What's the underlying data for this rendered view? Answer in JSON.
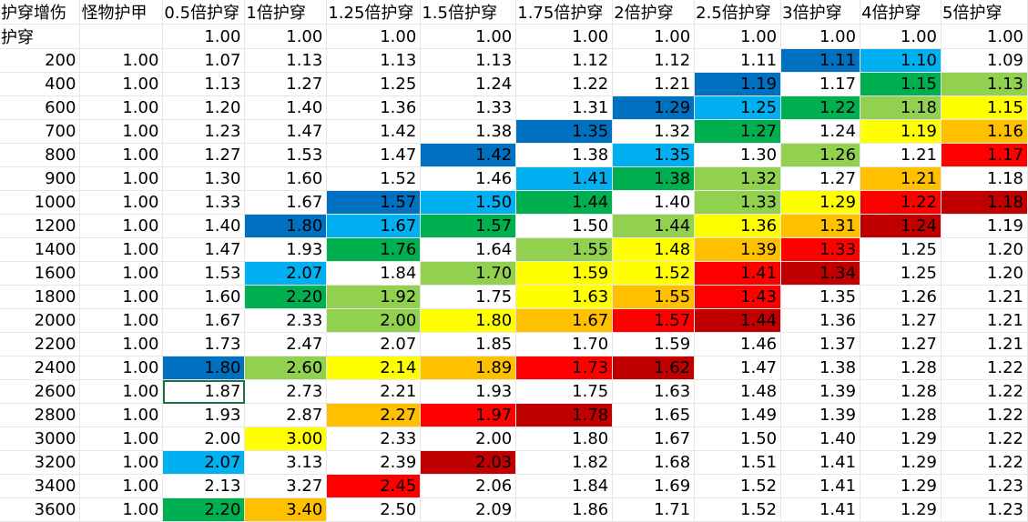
{
  "headers": [
    "护穿增伤",
    "怪物护甲",
    "0.5倍护穿",
    "1倍护穿",
    "1.25倍护穿",
    "1.5倍护穿",
    "1.75倍护穿",
    "2倍护穿",
    "2.5倍护穿",
    "3倍护穿",
    "4倍护穿",
    "5倍护穿"
  ],
  "colors": {
    "B": "#0070c0",
    "L": "#00b0f0",
    "G": "#00b050",
    "K": "#92d050",
    "Y": "#ffff00",
    "O": "#ffc000",
    "R": "#ff0000",
    "D": "#c00000"
  },
  "rows": [
    {
      "label": "护穿",
      "values": [
        "1.00",
        "1.00",
        "1.00",
        "1.00",
        "1.00",
        "1.00",
        "1.00",
        "1.00",
        "1.00",
        "1.00"
      ],
      "fills": [
        "",
        "",
        "",
        "",
        "",
        "",
        "",
        "",
        "",
        ""
      ]
    },
    {
      "label": "200",
      "values": [
        "1.00",
        "1.07",
        "1.13",
        "1.13",
        "1.13",
        "1.12",
        "1.12",
        "1.11",
        "1.11",
        "1.10",
        "1.09"
      ],
      "fills": [
        "",
        "",
        "",
        "",
        "",
        "",
        "",
        "",
        "B",
        "L",
        ""
      ]
    },
    {
      "label": "400",
      "values": [
        "1.00",
        "1.13",
        "1.27",
        "1.25",
        "1.24",
        "1.22",
        "1.21",
        "1.19",
        "1.17",
        "1.15",
        "1.13"
      ],
      "fills": [
        "",
        "",
        "",
        "",
        "",
        "",
        "",
        "B",
        "",
        "G",
        "K"
      ]
    },
    {
      "label": "600",
      "values": [
        "1.00",
        "1.20",
        "1.40",
        "1.36",
        "1.33",
        "1.31",
        "1.29",
        "1.25",
        "1.22",
        "1.18",
        "1.15"
      ],
      "fills": [
        "",
        "",
        "",
        "",
        "",
        "",
        "B",
        "L",
        "G",
        "K",
        "Y"
      ]
    },
    {
      "label": "700",
      "values": [
        "1.00",
        "1.23",
        "1.47",
        "1.42",
        "1.38",
        "1.35",
        "1.32",
        "1.27",
        "1.24",
        "1.19",
        "1.16"
      ],
      "fills": [
        "",
        "",
        "",
        "",
        "",
        "B",
        "",
        "G",
        "",
        "Y",
        "O"
      ]
    },
    {
      "label": "800",
      "values": [
        "1.00",
        "1.27",
        "1.53",
        "1.47",
        "1.42",
        "1.38",
        "1.35",
        "1.30",
        "1.26",
        "1.21",
        "1.17"
      ],
      "fills": [
        "",
        "",
        "",
        "",
        "B",
        "",
        "L",
        "",
        "K",
        "",
        "R"
      ]
    },
    {
      "label": "900",
      "values": [
        "1.00",
        "1.30",
        "1.60",
        "1.52",
        "1.46",
        "1.41",
        "1.38",
        "1.32",
        "1.27",
        "1.21",
        "1.18"
      ],
      "fills": [
        "",
        "",
        "",
        "",
        "",
        "L",
        "G",
        "K",
        "",
        "O",
        ""
      ]
    },
    {
      "label": "1000",
      "values": [
        "1.00",
        "1.33",
        "1.67",
        "1.57",
        "1.50",
        "1.44",
        "1.40",
        "1.33",
        "1.29",
        "1.22",
        "1.18"
      ],
      "fills": [
        "",
        "",
        "",
        "B",
        "L",
        "G",
        "",
        "K",
        "Y",
        "R",
        "D"
      ]
    },
    {
      "label": "1200",
      "values": [
        "1.00",
        "1.40",
        "1.80",
        "1.67",
        "1.57",
        "1.50",
        "1.44",
        "1.36",
        "1.31",
        "1.24",
        "1.19"
      ],
      "fills": [
        "",
        "",
        "B",
        "L",
        "G",
        "",
        "K",
        "Y",
        "O",
        "D",
        ""
      ]
    },
    {
      "label": "1400",
      "values": [
        "1.00",
        "1.47",
        "1.93",
        "1.76",
        "1.64",
        "1.55",
        "1.48",
        "1.39",
        "1.33",
        "1.25",
        "1.20"
      ],
      "fills": [
        "",
        "",
        "",
        "G",
        "",
        "K",
        "Y",
        "O",
        "R",
        "",
        ""
      ]
    },
    {
      "label": "1600",
      "values": [
        "1.00",
        "1.53",
        "2.07",
        "1.84",
        "1.70",
        "1.59",
        "1.52",
        "1.41",
        "1.34",
        "1.25",
        "1.20"
      ],
      "fills": [
        "",
        "",
        "L",
        "",
        "K",
        "Y",
        "Y",
        "R",
        "D",
        "",
        ""
      ]
    },
    {
      "label": "1800",
      "values": [
        "1.00",
        "1.60",
        "2.20",
        "1.92",
        "1.75",
        "1.63",
        "1.55",
        "1.43",
        "1.35",
        "1.26",
        "1.21"
      ],
      "fills": [
        "",
        "",
        "G",
        "K",
        "",
        "Y",
        "O",
        "R",
        "",
        "",
        ""
      ]
    },
    {
      "label": "2000",
      "values": [
        "1.00",
        "1.67",
        "2.33",
        "2.00",
        "1.80",
        "1.67",
        "1.57",
        "1.44",
        "1.36",
        "1.27",
        "1.21"
      ],
      "fills": [
        "",
        "",
        "",
        "K",
        "Y",
        "O",
        "R",
        "D",
        "",
        "",
        ""
      ]
    },
    {
      "label": "2200",
      "values": [
        "1.00",
        "1.73",
        "2.47",
        "2.07",
        "1.85",
        "1.70",
        "1.59",
        "1.46",
        "1.37",
        "1.27",
        "1.21"
      ],
      "fills": [
        "",
        "",
        "",
        "",
        "",
        "",
        "",
        "",
        "",
        "",
        ""
      ]
    },
    {
      "label": "2400",
      "values": [
        "1.00",
        "1.80",
        "2.60",
        "2.14",
        "1.89",
        "1.73",
        "1.62",
        "1.47",
        "1.38",
        "1.28",
        "1.22"
      ],
      "fills": [
        "",
        "B",
        "K",
        "Y",
        "O",
        "R",
        "D",
        "",
        "",
        "",
        ""
      ]
    },
    {
      "label": "2600",
      "values": [
        "1.00",
        "1.87",
        "2.73",
        "2.21",
        "1.93",
        "1.75",
        "1.63",
        "1.48",
        "1.39",
        "1.28",
        "1.22"
      ],
      "fills": [
        "",
        "",
        "",
        "",
        "",
        "",
        "",
        "",
        "",
        "",
        ""
      ]
    },
    {
      "label": "2800",
      "values": [
        "1.00",
        "1.93",
        "2.87",
        "2.27",
        "1.97",
        "1.78",
        "1.65",
        "1.49",
        "1.39",
        "1.28",
        "1.22"
      ],
      "fills": [
        "",
        "",
        "",
        "O",
        "R",
        "D",
        "",
        "",
        "",
        "",
        ""
      ]
    },
    {
      "label": "3000",
      "values": [
        "1.00",
        "2.00",
        "3.00",
        "2.33",
        "2.00",
        "1.80",
        "1.67",
        "1.50",
        "1.40",
        "1.29",
        "1.22"
      ],
      "fills": [
        "",
        "",
        "Y",
        "",
        "",
        "",
        "",
        "",
        "",
        "",
        ""
      ]
    },
    {
      "label": "3200",
      "values": [
        "1.00",
        "2.07",
        "3.13",
        "2.39",
        "2.03",
        "1.82",
        "1.68",
        "1.51",
        "1.41",
        "1.29",
        "1.22"
      ],
      "fills": [
        "",
        "L",
        "",
        "",
        "D",
        "",
        "",
        "",
        "",
        "",
        ""
      ]
    },
    {
      "label": "3400",
      "values": [
        "1.00",
        "2.13",
        "3.27",
        "2.45",
        "2.06",
        "1.84",
        "1.69",
        "1.52",
        "1.41",
        "1.29",
        "1.23"
      ],
      "fills": [
        "",
        "",
        "",
        "R",
        "",
        "",
        "",
        "",
        "",
        "",
        ""
      ]
    },
    {
      "label": "3600",
      "values": [
        "1.00",
        "2.20",
        "3.40",
        "2.50",
        "2.09",
        "1.86",
        "1.71",
        "1.52",
        "1.41",
        "1.29",
        "1.23"
      ],
      "fills": [
        "",
        "G",
        "O",
        "",
        "",
        "",
        "",
        "",
        "",
        "",
        ""
      ]
    }
  ]
}
